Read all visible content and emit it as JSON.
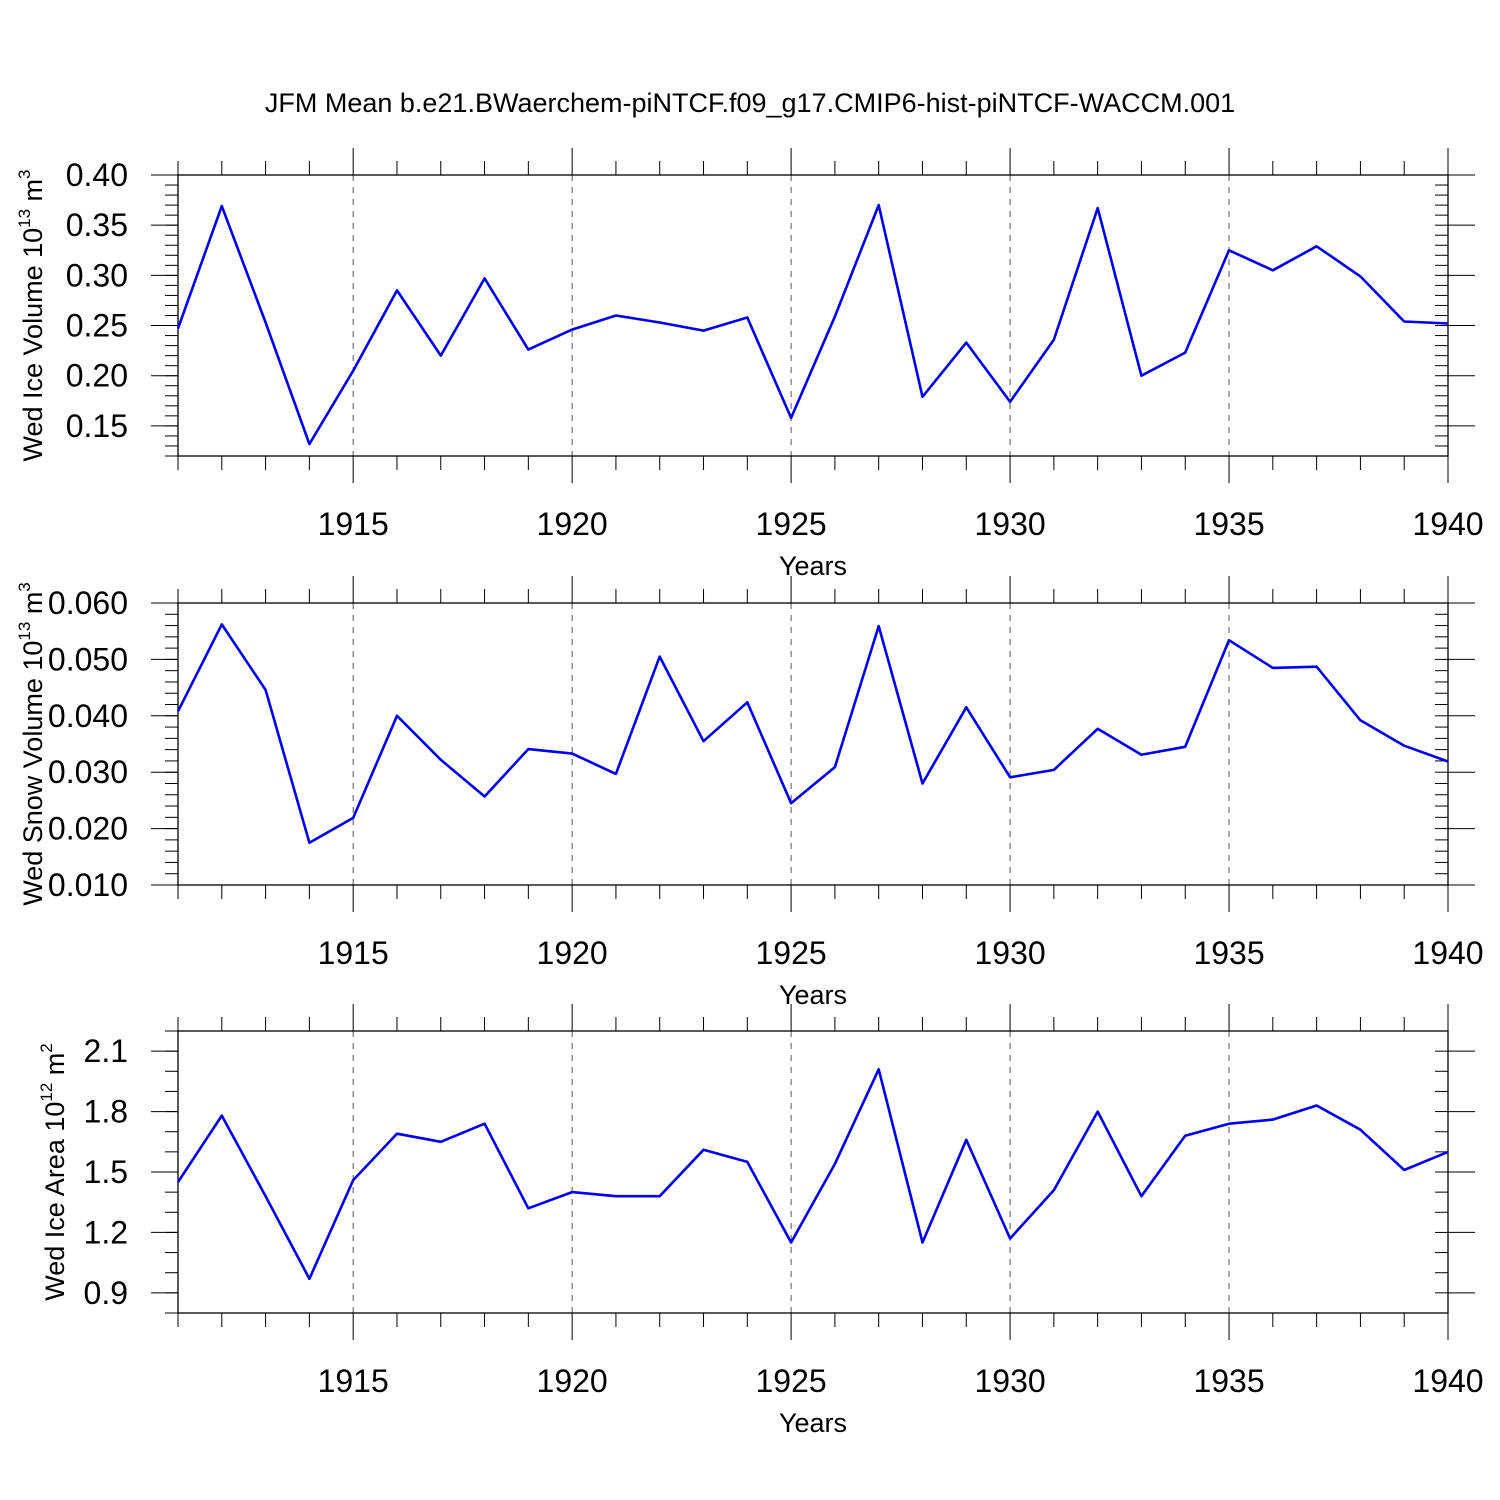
{
  "title": "JFM Mean b.e21.BWaerchem-piNTCF.f09_g17.CMIP6-hist-piNTCF-WACCM.001",
  "chart_data": [
    {
      "type": "line",
      "xlabel": "Years",
      "ylabel_main": "Wed Ice Volume 10",
      "ylabel_exp": "13",
      "ylabel_unit": " m",
      "ylabel_unit_exp": "3",
      "xlim": [
        1911,
        1940
      ],
      "ylim": [
        0.12,
        0.4
      ],
      "yticks": [
        0.15,
        0.2,
        0.25,
        0.3,
        0.35,
        0.4
      ],
      "ytick_labels": [
        "0.15",
        "0.20",
        "0.25",
        "0.30",
        "0.35",
        "0.40"
      ],
      "yminor_step": 0.01,
      "xticks": [
        1915,
        1920,
        1925,
        1930,
        1935,
        1940
      ],
      "xtick_labels": [
        "1915",
        "1920",
        "1925",
        "1930",
        "1935",
        "1940"
      ],
      "series": [
        {
          "name": "Wed Ice Volume",
          "color": "#0000ee",
          "x": [
            1911,
            1912,
            1913,
            1914,
            1915,
            1916,
            1917,
            1918,
            1919,
            1920,
            1921,
            1922,
            1923,
            1924,
            1925,
            1926,
            1927,
            1928,
            1929,
            1930,
            1931,
            1932,
            1933,
            1934,
            1935,
            1936,
            1937,
            1938,
            1939,
            1940
          ],
          "values": [
            0.247,
            0.369,
            0.253,
            0.132,
            0.205,
            0.285,
            0.22,
            0.297,
            0.226,
            0.246,
            0.26,
            0.253,
            0.245,
            0.258,
            0.158,
            0.259,
            0.37,
            0.179,
            0.233,
            0.174,
            0.236,
            0.367,
            0.2,
            0.223,
            0.325,
            0.305,
            0.329,
            0.299,
            0.254,
            0.252
          ]
        }
      ]
    },
    {
      "type": "line",
      "xlabel": "Years",
      "ylabel_main": "Wed Snow Volume 10",
      "ylabel_exp": "13",
      "ylabel_unit": " m",
      "ylabel_unit_exp": "3",
      "xlim": [
        1911,
        1940
      ],
      "ylim": [
        0.01,
        0.06
      ],
      "yticks": [
        0.01,
        0.02,
        0.03,
        0.04,
        0.05,
        0.06
      ],
      "ytick_labels": [
        "0.010",
        "0.020",
        "0.030",
        "0.040",
        "0.050",
        "0.060"
      ],
      "yminor_step": 0.002,
      "xticks": [
        1915,
        1920,
        1925,
        1930,
        1935,
        1940
      ],
      "xtick_labels": [
        "1915",
        "1920",
        "1925",
        "1930",
        "1935",
        "1940"
      ],
      "series": [
        {
          "name": "Wed Snow Volume",
          "color": "#0000ee",
          "x": [
            1911,
            1912,
            1913,
            1914,
            1915,
            1916,
            1917,
            1918,
            1919,
            1920,
            1921,
            1922,
            1923,
            1924,
            1925,
            1926,
            1927,
            1928,
            1929,
            1930,
            1931,
            1932,
            1933,
            1934,
            1935,
            1936,
            1937,
            1938,
            1939,
            1940
          ],
          "values": [
            0.0408,
            0.0562,
            0.0446,
            0.0175,
            0.0219,
            0.04,
            0.0322,
            0.0257,
            0.0341,
            0.0333,
            0.0297,
            0.0505,
            0.0355,
            0.0424,
            0.0245,
            0.0309,
            0.0559,
            0.028,
            0.0415,
            0.0291,
            0.0304,
            0.0377,
            0.0331,
            0.0345,
            0.0534,
            0.0485,
            0.0487,
            0.0392,
            0.0347,
            0.0319
          ]
        }
      ]
    },
    {
      "type": "line",
      "xlabel": "Years",
      "ylabel_main": "Wed Ice Area 10",
      "ylabel_exp": "12",
      "ylabel_unit": " m",
      "ylabel_unit_exp": "2",
      "xlim": [
        1911,
        1940
      ],
      "ylim": [
        0.8,
        2.2
      ],
      "yticks": [
        0.9,
        1.2,
        1.5,
        1.8,
        2.1
      ],
      "ytick_labels": [
        "0.9",
        "1.2",
        "1.5",
        "1.8",
        "2.1"
      ],
      "yminor_step": 0.1,
      "xticks": [
        1915,
        1920,
        1925,
        1930,
        1935,
        1940
      ],
      "xtick_labels": [
        "1915",
        "1920",
        "1925",
        "1930",
        "1935",
        "1940"
      ],
      "series": [
        {
          "name": "Wed Ice Area",
          "color": "#0000ee",
          "x": [
            1911,
            1912,
            1913,
            1914,
            1915,
            1916,
            1917,
            1918,
            1919,
            1920,
            1921,
            1922,
            1923,
            1924,
            1925,
            1926,
            1927,
            1928,
            1929,
            1930,
            1931,
            1932,
            1933,
            1934,
            1935,
            1936,
            1937,
            1938,
            1939,
            1940
          ],
          "values": [
            1.45,
            1.78,
            1.38,
            0.97,
            1.46,
            1.69,
            1.65,
            1.74,
            1.32,
            1.4,
            1.38,
            1.38,
            1.61,
            1.55,
            1.15,
            1.54,
            2.01,
            1.15,
            1.66,
            1.17,
            1.41,
            1.8,
            1.38,
            1.68,
            1.74,
            1.76,
            1.83,
            1.71,
            1.51,
            1.6
          ]
        }
      ]
    }
  ]
}
